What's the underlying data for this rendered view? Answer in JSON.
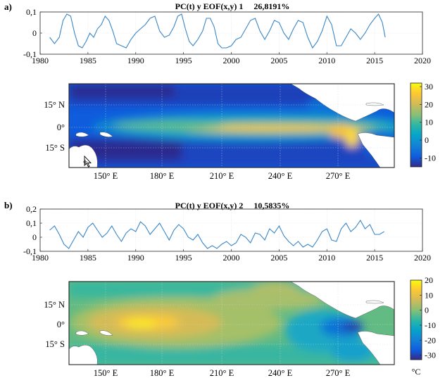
{
  "panels": [
    {
      "letter": "a)"
    },
    {
      "letter": "b)"
    }
  ],
  "chart_data": [
    {
      "type": "line",
      "title": "PC(t) y EOF(x,y) 1     26,8191%",
      "xlabel": "",
      "ylabel": "",
      "xlim": [
        1980,
        2020
      ],
      "ylim": [
        -0.1,
        0.1
      ],
      "x_ticks": [
        "1980",
        "1985",
        "1990",
        "1995",
        "2000",
        "2005",
        "2010",
        "2015",
        "2020"
      ],
      "y_ticks": [
        "0,1",
        "0",
        "-0,1"
      ],
      "grid": true,
      "series": [
        {
          "x": [
            1981.0,
            1981.5,
            1982.0,
            1982.4,
            1982.8,
            1983.2,
            1983.6,
            1984.0,
            1984.4,
            1984.8,
            1985.2,
            1985.6,
            1986.0,
            1986.4,
            1986.8,
            1987.2,
            1987.6,
            1988.0,
            1988.5,
            1989.0,
            1989.5,
            1990.0,
            1990.5,
            1991.0,
            1991.5,
            1992.0,
            1992.5,
            1993.0,
            1993.5,
            1994.0,
            1994.4,
            1994.8,
            1995.2,
            1995.6,
            1996.0,
            1996.5,
            1997.0,
            1997.4,
            1997.8,
            1998.2,
            1998.6,
            1999.0,
            1999.5,
            2000.0,
            2000.5,
            2001.0,
            2001.5,
            2002.0,
            2002.5,
            2003.0,
            2003.5,
            2004.0,
            2004.5,
            2005.0,
            2005.5,
            2006.0,
            2006.5,
            2007.0,
            2007.5,
            2008.0,
            2008.5,
            2009.0,
            2009.5,
            2010.0,
            2010.5,
            2011.0,
            2011.5,
            2012.0,
            2012.5,
            2013.0,
            2013.5,
            2014.0,
            2014.5,
            2015.0,
            2015.4,
            2015.8,
            2016.1
          ],
          "values": [
            -0.02,
            -0.05,
            -0.02,
            0.06,
            0.09,
            0.08,
            0.0,
            -0.06,
            -0.07,
            -0.04,
            0.0,
            -0.02,
            0.02,
            0.04,
            0.08,
            0.06,
            0.01,
            -0.05,
            -0.06,
            -0.07,
            -0.03,
            0.0,
            0.02,
            0.04,
            0.07,
            0.08,
            0.01,
            -0.02,
            -0.01,
            0.03,
            0.08,
            0.09,
            0.02,
            -0.04,
            -0.06,
            -0.03,
            0.01,
            0.07,
            0.07,
            0.03,
            -0.05,
            -0.07,
            -0.07,
            -0.06,
            -0.03,
            -0.02,
            0.02,
            0.06,
            0.07,
            0.01,
            -0.03,
            0.01,
            0.06,
            0.05,
            0.0,
            -0.03,
            0.02,
            0.06,
            0.05,
            -0.02,
            -0.07,
            -0.04,
            0.01,
            0.08,
            0.04,
            -0.06,
            -0.06,
            -0.02,
            0.02,
            0.0,
            -0.03,
            0.0,
            0.04,
            0.07,
            0.09,
            0.05,
            -0.02
          ]
        }
      ]
    },
    {
      "type": "heatmap",
      "title": "",
      "lat_ticks": [
        "15° N",
        "0°",
        "15° S"
      ],
      "lon_ticks": [
        "150° E",
        "180° E",
        "210° E",
        "240° E",
        "270° E"
      ],
      "colorbar_ticks": [
        "30",
        "20",
        "10",
        "0",
        "-10"
      ],
      "colorbar_range": [
        -15,
        32
      ],
      "colormap": [
        "#352a87",
        "#0f5cdd",
        "#1481d6",
        "#06a4ca",
        "#2eb7a4",
        "#87bf77",
        "#d1bb59",
        "#fec832",
        "#f9fb0e"
      ]
    },
    {
      "type": "line",
      "title": "PC(t) y EOF(x,y) 2     10,5835%",
      "xlabel": "",
      "ylabel": "",
      "xlim": [
        1980,
        2020
      ],
      "ylim": [
        -0.1,
        0.2
      ],
      "x_ticks": [
        "1980",
        "1985",
        "1990",
        "1995",
        "2000",
        "2005",
        "2010",
        "2015",
        "2020"
      ],
      "y_ticks": [
        "0,2",
        "0,1",
        "0",
        "-0,1"
      ],
      "grid": true,
      "series": [
        {
          "x": [
            1981.0,
            1981.5,
            1982.0,
            1982.5,
            1983.0,
            1983.5,
            1984.0,
            1984.5,
            1985.0,
            1985.5,
            1986.0,
            1986.5,
            1987.0,
            1987.5,
            1988.0,
            1988.5,
            1989.0,
            1989.5,
            1990.0,
            1990.5,
            1991.0,
            1991.5,
            1992.0,
            1992.5,
            1993.0,
            1993.5,
            1994.0,
            1994.5,
            1995.0,
            1995.5,
            1996.0,
            1996.5,
            1997.0,
            1997.5,
            1998.0,
            1998.5,
            1999.0,
            1999.5,
            2000.0,
            2000.5,
            2001.0,
            2001.5,
            2002.0,
            2002.5,
            2003.0,
            2003.5,
            2004.0,
            2004.5,
            2005.0,
            2005.5,
            2006.0,
            2006.5,
            2007.0,
            2007.5,
            2008.0,
            2008.5,
            2009.0,
            2009.5,
            2010.0,
            2010.5,
            2011.0,
            2011.5,
            2012.0,
            2012.5,
            2013.0,
            2013.5,
            2014.0,
            2014.5,
            2015.0,
            2015.5,
            2016.0
          ],
          "values": [
            0.05,
            0.08,
            0.02,
            -0.05,
            -0.08,
            -0.02,
            0.04,
            0.0,
            0.07,
            0.1,
            0.05,
            0.0,
            0.03,
            0.08,
            0.02,
            -0.03,
            0.03,
            0.06,
            0.04,
            0.11,
            0.08,
            0.02,
            0.06,
            0.1,
            0.04,
            -0.02,
            0.05,
            0.09,
            0.06,
            0.0,
            -0.02,
            0.02,
            -0.04,
            -0.08,
            -0.06,
            -0.08,
            -0.05,
            -0.03,
            -0.06,
            -0.04,
            0.02,
            0.0,
            -0.04,
            0.03,
            0.02,
            -0.02,
            0.06,
            0.03,
            0.08,
            0.01,
            -0.03,
            -0.06,
            -0.03,
            -0.07,
            -0.05,
            -0.07,
            -0.02,
            0.04,
            0.06,
            -0.02,
            -0.03,
            0.06,
            0.1,
            0.04,
            0.07,
            0.12,
            0.06,
            0.09,
            0.02,
            0.02,
            0.04
          ]
        }
      ]
    },
    {
      "type": "heatmap",
      "title": "",
      "lat_ticks": [
        "15° N",
        "0°",
        "15° S"
      ],
      "lon_ticks": [
        "150° E",
        "180° E",
        "210° E",
        "240° E",
        "270° E"
      ],
      "colorbar_ticks": [
        "20",
        "10",
        "0",
        "-10",
        "-20",
        "-30"
      ],
      "colorbar_range": [
        -33,
        20
      ],
      "colorbar_unit": "°C",
      "colormap": [
        "#352a87",
        "#0f5cdd",
        "#1481d6",
        "#06a4ca",
        "#2eb7a4",
        "#87bf77",
        "#d1bb59",
        "#fec832",
        "#f9fb0e"
      ]
    }
  ]
}
